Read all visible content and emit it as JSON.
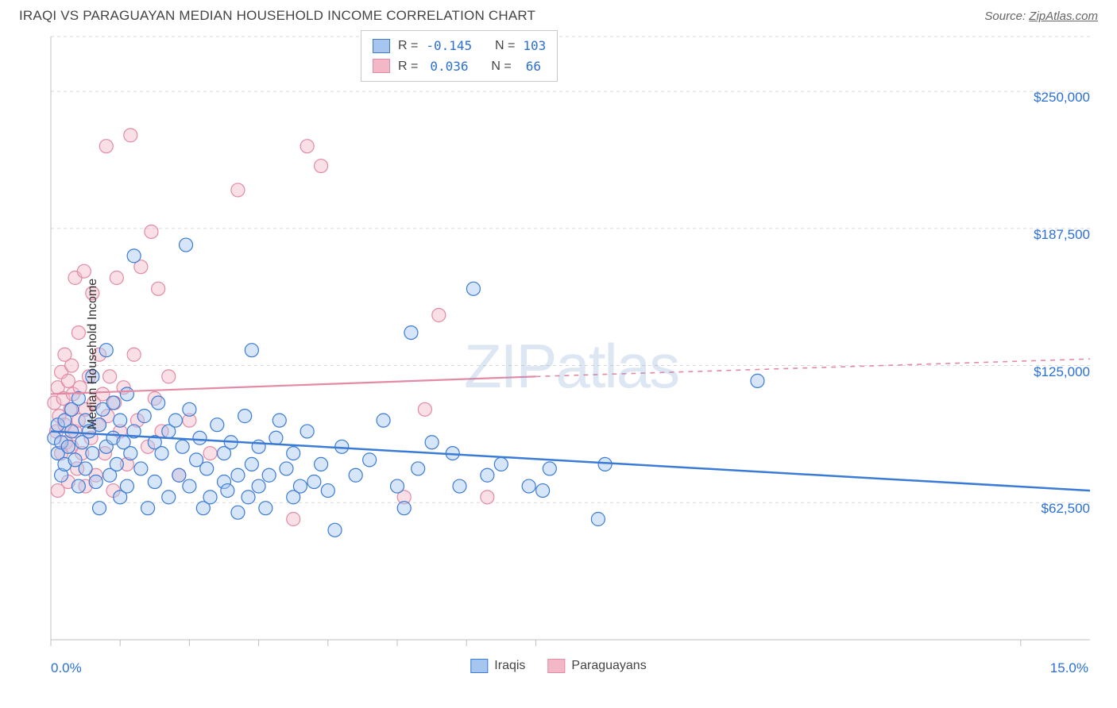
{
  "header": {
    "title": "IRAQI VS PARAGUAYAN MEDIAN HOUSEHOLD INCOME CORRELATION CHART",
    "source_prefix": "Source: ",
    "source_name": "ZipAtlas.com"
  },
  "watermark": "ZIPatlas",
  "chart": {
    "type": "scatter",
    "ylabel": "Median Household Income",
    "xlim": [
      0,
      15
    ],
    "ylim": [
      0,
      275000
    ],
    "x_ticks": [
      0,
      1,
      2,
      3,
      4,
      5,
      6,
      7,
      14
    ],
    "y_gridlines": [
      62500,
      125000,
      187500,
      250000
    ],
    "y_tick_labels": [
      "$62,500",
      "$125,000",
      "$187,500",
      "$250,000"
    ],
    "x_min_label": "0.0%",
    "x_max_label": "15.0%",
    "grid_color": "#d9d9d9",
    "axis_color": "#bfbfbf",
    "bg": "#ffffff",
    "marker_radius": 8.5,
    "fill_opacity": 0.45,
    "title_fontsize": 17,
    "label_fontsize": 16,
    "tick_fontsize": 17,
    "series": [
      {
        "name": "Iraqis",
        "stroke": "#3a7bd5",
        "fill": "#a7c6ef",
        "r_label": "R =",
        "r_value": "-0.145",
        "n_label": "N =",
        "n_value": "103",
        "trend": {
          "x1": 0,
          "y1": 95000,
          "x2": 15,
          "y2": 68000
        },
        "points": [
          [
            0.05,
            92000
          ],
          [
            0.1,
            85000
          ],
          [
            0.1,
            98000
          ],
          [
            0.15,
            90000
          ],
          [
            0.15,
            75000
          ],
          [
            0.2,
            100000
          ],
          [
            0.2,
            80000
          ],
          [
            0.25,
            88000
          ],
          [
            0.3,
            95000
          ],
          [
            0.3,
            105000
          ],
          [
            0.35,
            82000
          ],
          [
            0.4,
            110000
          ],
          [
            0.4,
            70000
          ],
          [
            0.45,
            90000
          ],
          [
            0.5,
            100000
          ],
          [
            0.5,
            78000
          ],
          [
            0.55,
            95000
          ],
          [
            0.6,
            85000
          ],
          [
            0.6,
            120000
          ],
          [
            0.65,
            72000
          ],
          [
            0.7,
            98000
          ],
          [
            0.7,
            60000
          ],
          [
            0.75,
            105000
          ],
          [
            0.8,
            88000
          ],
          [
            0.8,
            132000
          ],
          [
            0.85,
            75000
          ],
          [
            0.9,
            92000
          ],
          [
            0.9,
            108000
          ],
          [
            0.95,
            80000
          ],
          [
            1.0,
            100000
          ],
          [
            1.0,
            65000
          ],
          [
            1.05,
            90000
          ],
          [
            1.1,
            112000
          ],
          [
            1.1,
            70000
          ],
          [
            1.15,
            85000
          ],
          [
            1.2,
            95000
          ],
          [
            1.2,
            175000
          ],
          [
            1.3,
            78000
          ],
          [
            1.35,
            102000
          ],
          [
            1.4,
            60000
          ],
          [
            1.5,
            90000
          ],
          [
            1.5,
            72000
          ],
          [
            1.55,
            108000
          ],
          [
            1.6,
            85000
          ],
          [
            1.7,
            95000
          ],
          [
            1.7,
            65000
          ],
          [
            1.8,
            100000
          ],
          [
            1.85,
            75000
          ],
          [
            1.9,
            88000
          ],
          [
            1.95,
            180000
          ],
          [
            2.0,
            70000
          ],
          [
            2.0,
            105000
          ],
          [
            2.1,
            82000
          ],
          [
            2.15,
            92000
          ],
          [
            2.2,
            60000
          ],
          [
            2.25,
            78000
          ],
          [
            2.3,
            65000
          ],
          [
            2.4,
            98000
          ],
          [
            2.5,
            72000
          ],
          [
            2.5,
            85000
          ],
          [
            2.55,
            68000
          ],
          [
            2.6,
            90000
          ],
          [
            2.7,
            75000
          ],
          [
            2.7,
            58000
          ],
          [
            2.8,
            102000
          ],
          [
            2.85,
            65000
          ],
          [
            2.9,
            80000
          ],
          [
            2.9,
            132000
          ],
          [
            3.0,
            70000
          ],
          [
            3.0,
            88000
          ],
          [
            3.1,
            60000
          ],
          [
            3.15,
            75000
          ],
          [
            3.25,
            92000
          ],
          [
            3.3,
            100000
          ],
          [
            3.4,
            78000
          ],
          [
            3.5,
            85000
          ],
          [
            3.5,
            65000
          ],
          [
            3.6,
            70000
          ],
          [
            3.7,
            95000
          ],
          [
            3.8,
            72000
          ],
          [
            3.9,
            80000
          ],
          [
            4.0,
            68000
          ],
          [
            4.1,
            50000
          ],
          [
            4.2,
            88000
          ],
          [
            4.4,
            75000
          ],
          [
            4.6,
            82000
          ],
          [
            4.8,
            100000
          ],
          [
            5.0,
            70000
          ],
          [
            5.1,
            60000
          ],
          [
            5.2,
            140000
          ],
          [
            5.3,
            78000
          ],
          [
            5.5,
            90000
          ],
          [
            5.8,
            85000
          ],
          [
            5.9,
            70000
          ],
          [
            6.1,
            160000
          ],
          [
            6.3,
            75000
          ],
          [
            6.5,
            80000
          ],
          [
            6.9,
            70000
          ],
          [
            7.2,
            78000
          ],
          [
            7.9,
            55000
          ],
          [
            8.0,
            80000
          ],
          [
            10.2,
            118000
          ],
          [
            7.1,
            68000
          ]
        ]
      },
      {
        "name": "Paraguayans",
        "stroke": "#e38aa5",
        "fill": "#f2b8c8",
        "r_label": "R =",
        "r_value": "0.036",
        "n_label": "N =",
        "n_value": "66",
        "trend_solid": {
          "x1": 0,
          "y1": 112000,
          "x2": 7,
          "y2": 120000
        },
        "trend_dash": {
          "x1": 7,
          "y1": 120000,
          "x2": 15,
          "y2": 128000
        },
        "points": [
          [
            0.05,
            108000
          ],
          [
            0.08,
            95000
          ],
          [
            0.1,
            115000
          ],
          [
            0.1,
            68000
          ],
          [
            0.12,
            102000
          ],
          [
            0.15,
            122000
          ],
          [
            0.15,
            85000
          ],
          [
            0.18,
            110000
          ],
          [
            0.2,
            98000
          ],
          [
            0.2,
            130000
          ],
          [
            0.22,
            90000
          ],
          [
            0.25,
            118000
          ],
          [
            0.25,
            72000
          ],
          [
            0.28,
            105000
          ],
          [
            0.3,
            125000
          ],
          [
            0.3,
            88000
          ],
          [
            0.32,
            112000
          ],
          [
            0.35,
            165000
          ],
          [
            0.35,
            95000
          ],
          [
            0.38,
            78000
          ],
          [
            0.4,
            140000
          ],
          [
            0.4,
            100000
          ],
          [
            0.42,
            115000
          ],
          [
            0.45,
            85000
          ],
          [
            0.48,
            168000
          ],
          [
            0.5,
            105000
          ],
          [
            0.5,
            70000
          ],
          [
            0.55,
            120000
          ],
          [
            0.58,
            92000
          ],
          [
            0.6,
            158000
          ],
          [
            0.62,
            108000
          ],
          [
            0.65,
            75000
          ],
          [
            0.7,
            130000
          ],
          [
            0.7,
            98000
          ],
          [
            0.75,
            112000
          ],
          [
            0.78,
            85000
          ],
          [
            0.8,
            225000
          ],
          [
            0.82,
            102000
          ],
          [
            0.85,
            120000
          ],
          [
            0.9,
            68000
          ],
          [
            0.92,
            108000
          ],
          [
            0.95,
            165000
          ],
          [
            1.0,
            95000
          ],
          [
            1.05,
            115000
          ],
          [
            1.1,
            80000
          ],
          [
            1.15,
            230000
          ],
          [
            1.2,
            130000
          ],
          [
            1.25,
            100000
          ],
          [
            1.3,
            170000
          ],
          [
            1.4,
            88000
          ],
          [
            1.45,
            186000
          ],
          [
            1.5,
            110000
          ],
          [
            1.55,
            160000
          ],
          [
            1.6,
            95000
          ],
          [
            1.7,
            120000
          ],
          [
            1.85,
            75000
          ],
          [
            2.0,
            100000
          ],
          [
            2.3,
            85000
          ],
          [
            2.7,
            205000
          ],
          [
            3.5,
            55000
          ],
          [
            3.7,
            225000
          ],
          [
            3.9,
            216000
          ],
          [
            5.1,
            65000
          ],
          [
            5.4,
            105000
          ],
          [
            5.6,
            148000
          ],
          [
            6.3,
            65000
          ]
        ]
      }
    ]
  },
  "bottom_legend": [
    {
      "label": "Iraqis",
      "stroke": "#3a7bd5",
      "fill": "#a7c6ef"
    },
    {
      "label": "Paraguayans",
      "stroke": "#e38aa5",
      "fill": "#f2b8c8"
    }
  ]
}
